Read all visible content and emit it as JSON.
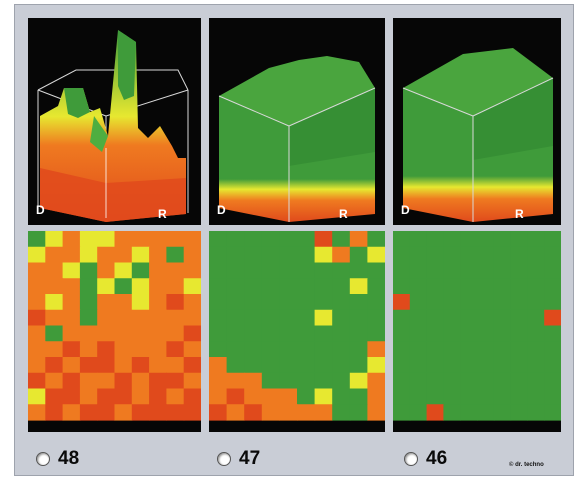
{
  "colors": {
    "frame": "#c9cdd6",
    "panel_bg": "#060606",
    "green": "#3f9b3a",
    "red": "#e04a1c",
    "orange": "#ef7a20",
    "yellow": "#e7e830"
  },
  "cubes": [
    {
      "name": "cube-48",
      "label_left": "D",
      "label_right": "R",
      "icon": "3d-surface-plot-icon"
    },
    {
      "name": "cube-47",
      "label_left": "D",
      "label_right": "R",
      "icon": "3d-surface-plot-icon"
    },
    {
      "name": "cube-46",
      "label_left": "D",
      "label_right": "R",
      "icon": "3d-surface-plot-icon"
    }
  ],
  "options": [
    {
      "label": "48",
      "selected": false
    },
    {
      "label": "47",
      "selected": false
    },
    {
      "label": "46",
      "selected": false
    }
  ],
  "copyright": "© dr. techno",
  "heatmaps": [
    {
      "name": "heatmap-48",
      "grid": [
        [
          "G",
          "Y",
          "O",
          "Y",
          "Y",
          "O",
          "O",
          "O",
          "O",
          "O"
        ],
        [
          "Y",
          "O",
          "O",
          "Y",
          "O",
          "O",
          "Y",
          "O",
          "G",
          "O"
        ],
        [
          "O",
          "O",
          "Y",
          "G",
          "O",
          "Y",
          "G",
          "O",
          "O",
          "O"
        ],
        [
          "O",
          "O",
          "O",
          "G",
          "Y",
          "G",
          "Y",
          "O",
          "O",
          "Y"
        ],
        [
          "O",
          "Y",
          "O",
          "G",
          "O",
          "O",
          "Y",
          "O",
          "R",
          "O"
        ],
        [
          "R",
          "O",
          "O",
          "G",
          "O",
          "O",
          "O",
          "O",
          "O",
          "O"
        ],
        [
          "O",
          "G",
          "O",
          "O",
          "O",
          "O",
          "O",
          "O",
          "O",
          "R"
        ],
        [
          "O",
          "O",
          "R",
          "O",
          "R",
          "O",
          "O",
          "O",
          "R",
          "O"
        ],
        [
          "O",
          "R",
          "O",
          "R",
          "R",
          "O",
          "R",
          "O",
          "O",
          "R"
        ],
        [
          "R",
          "O",
          "R",
          "O",
          "O",
          "R",
          "O",
          "R",
          "R",
          "O"
        ],
        [
          "Y",
          "R",
          "R",
          "O",
          "R",
          "R",
          "O",
          "R",
          "O",
          "R"
        ],
        [
          "O",
          "R",
          "O",
          "R",
          "R",
          "O",
          "R",
          "R",
          "R",
          "R"
        ]
      ]
    },
    {
      "name": "heatmap-47",
      "grid": [
        [
          "G",
          "G",
          "G",
          "G",
          "G",
          "G",
          "R",
          "G",
          "O",
          "G"
        ],
        [
          "G",
          "G",
          "G",
          "G",
          "G",
          "G",
          "Y",
          "O",
          "G",
          "Y"
        ],
        [
          "G",
          "G",
          "G",
          "G",
          "G",
          "G",
          "G",
          "G",
          "G",
          "G"
        ],
        [
          "G",
          "G",
          "G",
          "G",
          "G",
          "G",
          "G",
          "G",
          "Y",
          "G"
        ],
        [
          "G",
          "G",
          "G",
          "G",
          "G",
          "G",
          "G",
          "G",
          "G",
          "G"
        ],
        [
          "G",
          "G",
          "G",
          "G",
          "G",
          "G",
          "Y",
          "G",
          "G",
          "G"
        ],
        [
          "G",
          "G",
          "G",
          "G",
          "G",
          "G",
          "G",
          "G",
          "G",
          "G"
        ],
        [
          "G",
          "G",
          "G",
          "G",
          "G",
          "G",
          "G",
          "G",
          "G",
          "O"
        ],
        [
          "O",
          "G",
          "G",
          "G",
          "G",
          "G",
          "G",
          "G",
          "G",
          "Y"
        ],
        [
          "O",
          "O",
          "O",
          "G",
          "G",
          "G",
          "G",
          "G",
          "Y",
          "O"
        ],
        [
          "O",
          "R",
          "O",
          "O",
          "O",
          "G",
          "Y",
          "G",
          "G",
          "O"
        ],
        [
          "R",
          "O",
          "R",
          "O",
          "O",
          "O",
          "O",
          "G",
          "G",
          "O"
        ]
      ]
    },
    {
      "name": "heatmap-46",
      "grid": [
        [
          "G",
          "G",
          "G",
          "G",
          "G",
          "G",
          "G",
          "G",
          "G",
          "G"
        ],
        [
          "G",
          "G",
          "G",
          "G",
          "G",
          "G",
          "G",
          "G",
          "G",
          "G"
        ],
        [
          "G",
          "G",
          "G",
          "G",
          "G",
          "G",
          "G",
          "G",
          "G",
          "G"
        ],
        [
          "G",
          "G",
          "G",
          "G",
          "G",
          "G",
          "G",
          "G",
          "G",
          "G"
        ],
        [
          "R",
          "G",
          "G",
          "G",
          "G",
          "G",
          "G",
          "G",
          "G",
          "G"
        ],
        [
          "G",
          "G",
          "G",
          "G",
          "G",
          "G",
          "G",
          "G",
          "G",
          "R"
        ],
        [
          "G",
          "G",
          "G",
          "G",
          "G",
          "G",
          "G",
          "G",
          "G",
          "G"
        ],
        [
          "G",
          "G",
          "G",
          "G",
          "G",
          "G",
          "G",
          "G",
          "G",
          "G"
        ],
        [
          "G",
          "G",
          "G",
          "G",
          "G",
          "G",
          "G",
          "G",
          "G",
          "G"
        ],
        [
          "G",
          "G",
          "G",
          "G",
          "G",
          "G",
          "G",
          "G",
          "G",
          "G"
        ],
        [
          "G",
          "G",
          "G",
          "G",
          "G",
          "G",
          "G",
          "G",
          "G",
          "G"
        ],
        [
          "G",
          "G",
          "R",
          "G",
          "G",
          "G",
          "G",
          "G",
          "G",
          "G"
        ]
      ]
    }
  ]
}
